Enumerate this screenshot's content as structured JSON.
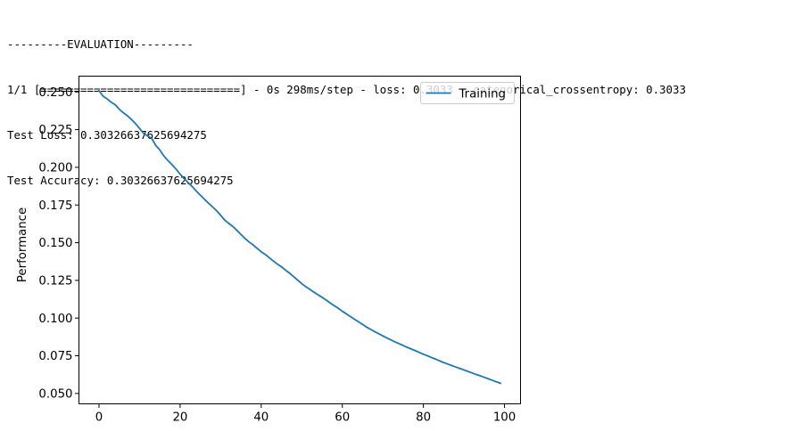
{
  "console": {
    "lines": [
      "---------EVALUATION---------",
      "1/1 [==============================] - 0s 298ms/step - loss: 0.3033 - categorical_crossentropy: 0.3033",
      "Test Loss: 0.30326637625694275",
      "Test Accuracy: 0.30326637625694275"
    ]
  },
  "chart_data": {
    "type": "line",
    "title": "",
    "xlabel": "",
    "ylabel": "Performance",
    "xlim": [
      -4.95,
      103.95
    ],
    "ylim": [
      0.0431,
      0.2605
    ],
    "xticks": [
      0,
      20,
      40,
      60,
      80,
      100
    ],
    "yticks": [
      0.05,
      0.075,
      0.1,
      0.125,
      0.15,
      0.175,
      0.2,
      0.225,
      0.25
    ],
    "ytick_labels": [
      "0.050",
      "0.075",
      "0.100",
      "0.125",
      "0.150",
      "0.175",
      "0.200",
      "0.225",
      "0.250"
    ],
    "grid": false,
    "legend": "top-right",
    "series": [
      {
        "name": "Training",
        "color": "#1f77b4",
        "x": [
          0,
          1,
          2,
          3,
          4,
          5,
          6,
          7,
          8,
          9,
          10,
          11,
          12,
          13,
          14,
          15,
          16,
          17,
          18,
          19,
          20,
          21,
          22,
          23,
          24,
          25,
          26,
          27,
          28,
          29,
          30,
          31,
          32,
          33,
          34,
          35,
          36,
          37,
          38,
          39,
          40,
          41,
          42,
          43,
          44,
          45,
          46,
          47,
          48,
          49,
          50,
          51,
          52,
          53,
          54,
          55,
          56,
          57,
          58,
          59,
          60,
          61,
          62,
          63,
          64,
          65,
          66,
          67,
          68,
          69,
          70,
          71,
          72,
          73,
          74,
          75,
          76,
          77,
          78,
          79,
          80,
          81,
          82,
          83,
          84,
          85,
          86,
          87,
          88,
          89,
          90,
          91,
          92,
          93,
          94,
          95,
          96,
          97,
          98,
          99
        ],
        "y": [
          0.2508,
          0.2472,
          0.2454,
          0.2432,
          0.2415,
          0.2385,
          0.2362,
          0.2342,
          0.2318,
          0.229,
          0.2258,
          0.2225,
          0.2208,
          0.2192,
          0.2145,
          0.2115,
          0.2075,
          0.2045,
          0.2018,
          0.1988,
          0.1955,
          0.1925,
          0.1898,
          0.1872,
          0.1842,
          0.1815,
          0.1788,
          0.1762,
          0.1738,
          0.1712,
          0.1682,
          0.165,
          0.1628,
          0.1608,
          0.1582,
          0.1555,
          0.1528,
          0.1505,
          0.1485,
          0.1462,
          0.144,
          0.1422,
          0.14,
          0.1378,
          0.1358,
          0.134,
          0.1318,
          0.1298,
          0.1275,
          0.1252,
          0.1228,
          0.1208,
          0.119,
          0.1172,
          0.1155,
          0.1138,
          0.112,
          0.11,
          0.1082,
          0.1065,
          0.1045,
          0.1028,
          0.101,
          0.0992,
          0.0975,
          0.0958,
          0.094,
          0.0925,
          0.091,
          0.0896,
          0.0882,
          0.0868,
          0.0855,
          0.0842,
          0.083,
          0.0818,
          0.0806,
          0.0795,
          0.0784,
          0.0772,
          0.076,
          0.075,
          0.0738,
          0.0728,
          0.0716,
          0.0705,
          0.0695,
          0.0685,
          0.0675,
          0.0666,
          0.0656,
          0.0646,
          0.0636,
          0.0626,
          0.0617,
          0.0607,
          0.0597,
          0.0587,
          0.0577,
          0.0568
        ]
      }
    ]
  }
}
